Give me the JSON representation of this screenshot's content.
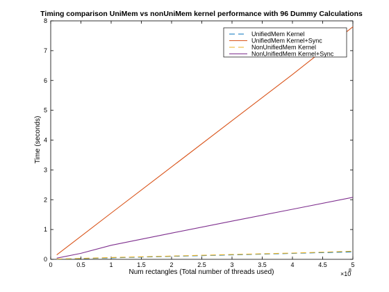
{
  "chart_data": {
    "type": "line",
    "title": "Timing comparison UniMem vs nonUniMem kernel performance with 96 Dummy Calculations",
    "xlabel": "Num rectangles (Total number of threads used)",
    "ylabel": "Time (seconds)",
    "x_exponent_label": "×10",
    "x_exponent_power": "8",
    "xlim": [
      0,
      5
    ],
    "ylim": [
      0,
      8
    ],
    "x_ticks": [
      "0",
      "0.5",
      "1",
      "1.5",
      "2",
      "2.5",
      "3",
      "3.5",
      "4",
      "4.5",
      "5"
    ],
    "y_ticks": [
      "0",
      "1",
      "2",
      "3",
      "4",
      "5",
      "6",
      "7",
      "8"
    ],
    "legend_position": "top-right",
    "grid": false,
    "series": [
      {
        "name": "UnifiedMem Kernel",
        "color": "#0072BD",
        "dash": "dashed",
        "x": [
          0.1,
          1,
          2,
          3,
          4,
          5
        ],
        "y": [
          0.005,
          0.05,
          0.1,
          0.15,
          0.2,
          0.25
        ]
      },
      {
        "name": "UnifiedMem Kernel+Sync",
        "color": "#D95319",
        "dash": "solid",
        "x": [
          0.1,
          1,
          2,
          3,
          4,
          5
        ],
        "y": [
          0.15,
          1.55,
          3.1,
          4.65,
          6.2,
          7.8
        ]
      },
      {
        "name": "NonUnifiedMem Kernel",
        "color": "#EDB120",
        "dash": "dashed",
        "x": [
          0.1,
          1,
          2,
          3,
          4,
          5
        ],
        "y": [
          0.01,
          0.06,
          0.11,
          0.16,
          0.21,
          0.27
        ]
      },
      {
        "name": "NonUnifiedMem Kernel+Sync",
        "color": "#7E2F8E",
        "dash": "solid",
        "x": [
          0.1,
          0.5,
          1,
          2,
          3,
          4,
          5
        ],
        "y": [
          0.04,
          0.2,
          0.47,
          0.88,
          1.28,
          1.68,
          2.08
        ]
      }
    ]
  }
}
